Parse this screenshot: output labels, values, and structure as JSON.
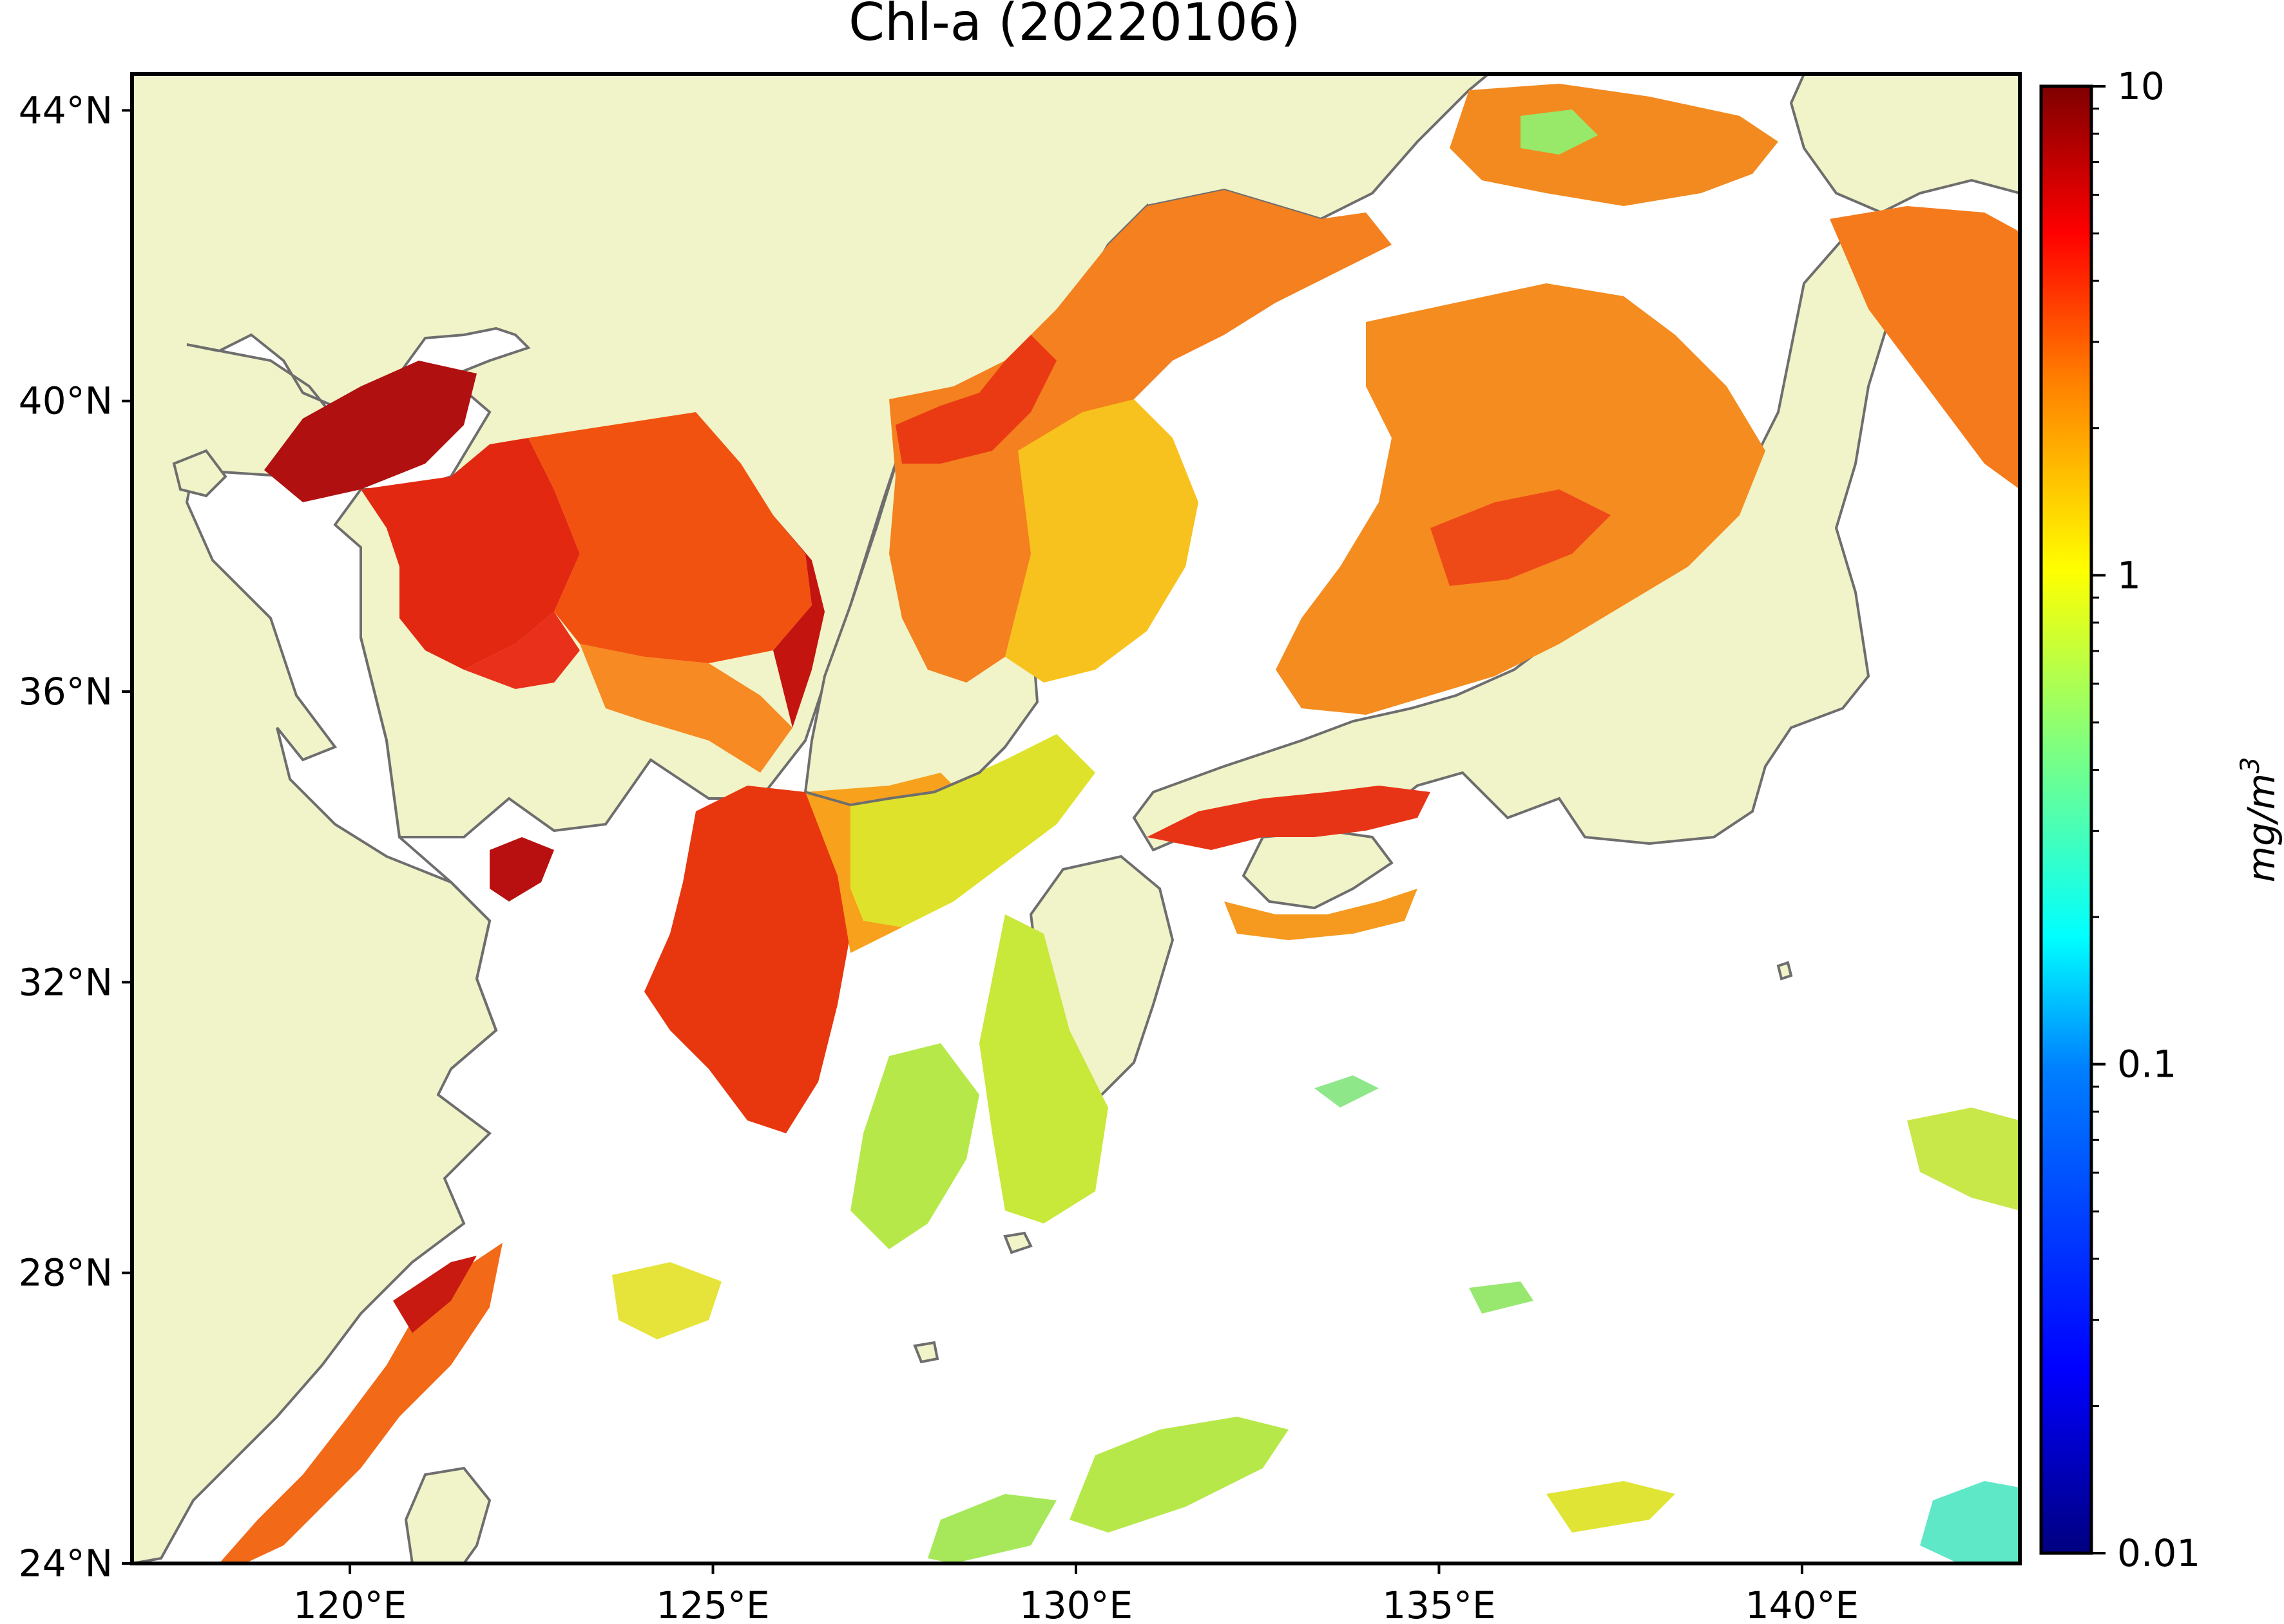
{
  "title": "Chl-a (20220106)",
  "map": {
    "lon_range": [
      117,
      143
    ],
    "lat_range": [
      24,
      44.5
    ],
    "lon_ticks": [
      {
        "value": 120,
        "label": "120°E"
      },
      {
        "value": 125,
        "label": "125°E"
      },
      {
        "value": 130,
        "label": "130°E"
      },
      {
        "value": 135,
        "label": "135°E"
      },
      {
        "value": 140,
        "label": "140°E"
      }
    ],
    "lat_ticks": [
      {
        "value": 24,
        "label": "24°N"
      },
      {
        "value": 28,
        "label": "28°N"
      },
      {
        "value": 32,
        "label": "32°N"
      },
      {
        "value": 36,
        "label": "36°N"
      },
      {
        "value": 40,
        "label": "40°N"
      },
      {
        "value": 44,
        "label": "44°N"
      }
    ],
    "land_color": "#f1f3c8",
    "ocean_nodata_color": "#ffffff",
    "coastline_color": "#6e6e6e"
  },
  "colorbar": {
    "scale": "log",
    "range": [
      0.01,
      10
    ],
    "ticks": [
      {
        "value": 10,
        "label": "10"
      },
      {
        "value": 1,
        "label": "1"
      },
      {
        "value": 0.1,
        "label": "0.1"
      },
      {
        "value": 0.01,
        "label": "0.01"
      }
    ],
    "unit_base": "mg/m",
    "unit_exp": "3",
    "colormap": "jet",
    "colors": [
      "#00007f",
      "#0000ff",
      "#007fff",
      "#00ffff",
      "#7fff7f",
      "#ffff00",
      "#ff7f00",
      "#ff0000",
      "#7f0000"
    ]
  }
}
